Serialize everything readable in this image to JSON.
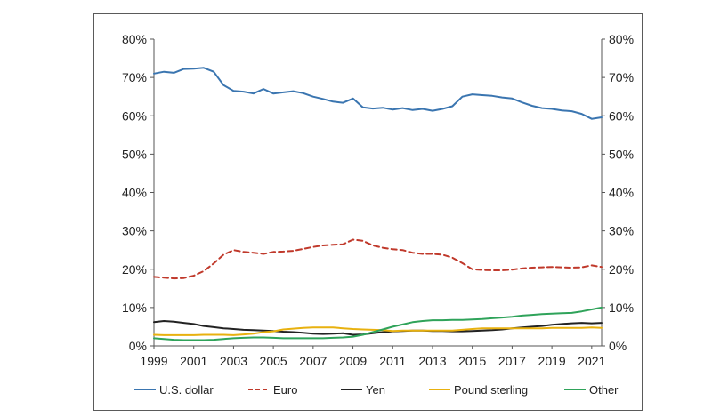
{
  "chart_data": {
    "type": "line",
    "title": "",
    "xlabel": "",
    "ylabel": "",
    "xlim": [
      1999,
      2021.5
    ],
    "ylim": [
      0,
      80
    ],
    "y_ticks": [
      0,
      10,
      20,
      30,
      40,
      50,
      60,
      70,
      80
    ],
    "y_tick_labels": [
      "0%",
      "10%",
      "20%",
      "30%",
      "40%",
      "50%",
      "60%",
      "70%",
      "80%"
    ],
    "x_ticks": [
      1999,
      2001,
      2003,
      2005,
      2007,
      2009,
      2011,
      2013,
      2015,
      2017,
      2019,
      2021
    ],
    "x_tick_labels": [
      "1999",
      "2001",
      "2003",
      "2005",
      "2007",
      "2009",
      "2011",
      "2013",
      "2015",
      "2017",
      "2019",
      "2021"
    ],
    "grid": false,
    "dual_y_axis": true,
    "legend_position": "bottom",
    "x": [
      1999,
      1999.5,
      2000,
      2000.5,
      2001,
      2001.5,
      2002,
      2002.5,
      2003,
      2003.5,
      2004,
      2004.5,
      2005,
      2005.5,
      2006,
      2006.5,
      2007,
      2007.5,
      2008,
      2008.5,
      2009,
      2009.5,
      2010,
      2010.5,
      2011,
      2011.5,
      2012,
      2012.5,
      2013,
      2013.5,
      2014,
      2014.5,
      2015,
      2015.5,
      2016,
      2016.5,
      2017,
      2017.5,
      2018,
      2018.5,
      2019,
      2019.5,
      2020,
      2020.5,
      2021,
      2021.5
    ],
    "series": [
      {
        "name": "U.S. dollar",
        "color": "#3a75b0",
        "dash": "solid",
        "values": [
          71,
          71.5,
          71.2,
          72.2,
          72.3,
          72.5,
          71.5,
          68.0,
          66.5,
          66.3,
          65.8,
          67.0,
          65.8,
          66.1,
          66.4,
          65.9,
          65.0,
          64.4,
          63.7,
          63.4,
          64.5,
          62.2,
          61.9,
          62.1,
          61.6,
          62.0,
          61.5,
          61.8,
          61.3,
          61.8,
          62.5,
          65.0,
          65.6,
          65.4,
          65.2,
          64.8,
          64.5,
          63.5,
          62.6,
          62.0,
          61.8,
          61.4,
          61.2,
          60.5,
          59.2,
          59.6
        ]
      },
      {
        "name": "Euro",
        "color": "#c0392b",
        "dash": "dashed",
        "values": [
          18.0,
          17.8,
          17.6,
          17.7,
          18.3,
          19.5,
          21.5,
          23.8,
          25.0,
          24.5,
          24.3,
          24.0,
          24.5,
          24.6,
          24.8,
          25.3,
          25.8,
          26.2,
          26.4,
          26.5,
          27.7,
          27.4,
          26.2,
          25.6,
          25.2,
          25.0,
          24.3,
          24.0,
          24.0,
          23.8,
          23.0,
          21.6,
          20.0,
          19.8,
          19.7,
          19.7,
          19.9,
          20.2,
          20.4,
          20.5,
          20.6,
          20.5,
          20.4,
          20.5,
          21.0,
          20.6
        ]
      },
      {
        "name": "Yen",
        "color": "#222222",
        "dash": "solid",
        "values": [
          6.2,
          6.5,
          6.3,
          6.0,
          5.7,
          5.2,
          4.9,
          4.6,
          4.4,
          4.2,
          4.1,
          4.0,
          3.9,
          3.7,
          3.6,
          3.4,
          3.2,
          3.1,
          3.2,
          3.3,
          2.9,
          3.0,
          3.3,
          3.6,
          3.8,
          3.9,
          4.0,
          4.0,
          3.9,
          3.9,
          3.8,
          3.8,
          3.9,
          4.0,
          4.1,
          4.3,
          4.6,
          4.8,
          5.0,
          5.2,
          5.5,
          5.7,
          5.9,
          6.0,
          5.9,
          6.0
        ]
      },
      {
        "name": "Pound sterling",
        "color": "#e8b10f",
        "dash": "solid",
        "values": [
          2.9,
          2.8,
          2.8,
          2.8,
          2.8,
          2.9,
          2.9,
          2.9,
          2.8,
          3.0,
          3.2,
          3.6,
          3.8,
          4.3,
          4.5,
          4.7,
          4.8,
          4.8,
          4.8,
          4.6,
          4.4,
          4.3,
          4.2,
          4.1,
          3.9,
          4.0,
          4.0,
          4.0,
          4.0,
          4.0,
          4.0,
          4.2,
          4.4,
          4.6,
          4.6,
          4.6,
          4.6,
          4.6,
          4.6,
          4.6,
          4.7,
          4.7,
          4.7,
          4.7,
          4.8,
          4.7
        ]
      },
      {
        "name": "Other",
        "color": "#2fa35a",
        "dash": "solid",
        "values": [
          2.0,
          1.8,
          1.6,
          1.5,
          1.5,
          1.5,
          1.6,
          1.8,
          2.0,
          2.1,
          2.2,
          2.2,
          2.1,
          2.0,
          2.0,
          2.0,
          2.0,
          2.0,
          2.1,
          2.2,
          2.4,
          2.9,
          3.6,
          4.3,
          5.0,
          5.6,
          6.2,
          6.5,
          6.7,
          6.7,
          6.8,
          6.8,
          6.9,
          7.0,
          7.2,
          7.4,
          7.6,
          7.9,
          8.1,
          8.3,
          8.4,
          8.5,
          8.6,
          9.0,
          9.5,
          10.0
        ]
      }
    ]
  }
}
